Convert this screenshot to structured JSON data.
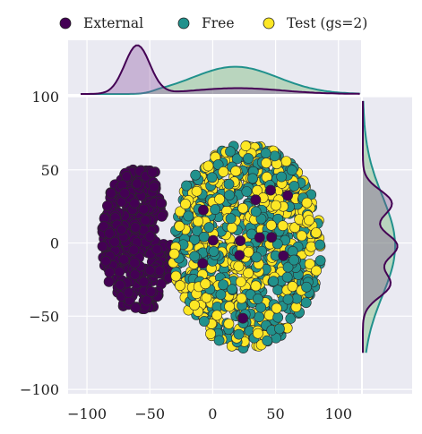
{
  "chart_data": {
    "type": "scatter",
    "subtype": "jointplot with marginal KDE",
    "legend": {
      "placement": "top",
      "entries": [
        {
          "label": "External",
          "color": "#440154"
        },
        {
          "label": "Free",
          "color": "#21918c"
        },
        {
          "label": "Test (gs=2)",
          "color": "#fde725"
        }
      ]
    },
    "xlim": [
      -115,
      118
    ],
    "ylim": [
      -103,
      100
    ],
    "xticks": [
      -100,
      -50,
      0,
      50,
      100
    ],
    "yticks": [
      -100,
      -50,
      0,
      50,
      100
    ],
    "xtick_labels": [
      "−100",
      "−50",
      "0",
      "50",
      "100"
    ],
    "ytick_labels": [
      "−100",
      "−50",
      "0",
      "50",
      "100"
    ],
    "grid": true,
    "series": [
      {
        "name": "External",
        "color": "#440154",
        "cluster": {
          "type": "crescent",
          "x_range": [
            -85,
            -35
          ],
          "y_range": [
            -45,
            50
          ],
          "count": 420
        },
        "marginal_x": {
          "peak": -60,
          "spread": 10
        },
        "marginal_y": {
          "peaks": [
            27,
            -2,
            -30
          ],
          "spread": 8
        }
      },
      {
        "name": "Free",
        "color": "#21918c",
        "cluster": {
          "type": "disc",
          "center": [
            27,
            -2
          ],
          "radius": 70,
          "count": 520
        },
        "marginal_x": {
          "peak": 18,
          "spread": 34
        },
        "marginal_y": {
          "peak": -2,
          "spread": 34
        }
      },
      {
        "name": "Test (gs=2)",
        "color": "#fde725",
        "cluster": {
          "type": "disc",
          "center": [
            27,
            -2
          ],
          "radius": 70,
          "count": 480
        },
        "marginal_x": {
          "peak": 18,
          "spread": 34
        },
        "marginal_y": {
          "peak": -2,
          "spread": 34
        }
      }
    ]
  }
}
